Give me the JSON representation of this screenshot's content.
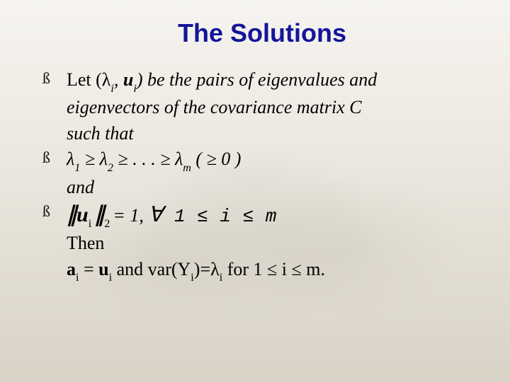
{
  "title": "The Solutions",
  "colors": {
    "title": "#14159a",
    "text": "#000000",
    "background_top": "#f6f4f0",
    "background_bottom": "#d9d3c6"
  },
  "typography": {
    "title_fontsize": 36,
    "body_fontsize": 26,
    "title_family": "Arial",
    "body_family": "Times New Roman"
  },
  "bullets": {
    "glyph": "ß"
  },
  "lines": {
    "l1a": "Let (λ",
    "l1a_sub": "i",
    "l1b": ", ",
    "l1b_bold": "u",
    "l1b_sub": "i",
    "l1c": ") be the pairs of eigenvalues and",
    "l2": "eigenvectors of the covariance matrix  C",
    "l3": "such that",
    "l4a": "λ",
    "l4a_sub": "1",
    "l4b": " ≥ λ",
    "l4b_sub": "2",
    "l4c": " ≥ . . . ≥ λ",
    "l4c_sub": "m",
    "l4d": "   ( ≥ 0 )",
    "l5": "and",
    "l6_open": "∥",
    "l6_u": "u",
    "l6_sub1": "i ",
    "l6_close": "∥",
    "l6_sub2": "2 ",
    "l6_eq": "= 1,  ",
    "l6_forall": "∀",
    "l6_range": "  1 ≤ i ≤ m",
    "l7": "Then",
    "l8a": "a",
    "l8a_sub": "i",
    "l8b": " = ",
    "l8b_bold": "u",
    "l8b_sub": "i",
    "l8c": " and var(Y",
    "l8c_sub": "i",
    "l8d": ")=λ",
    "l8d_sub": "i",
    "l8e": "  for 1 ≤ i ≤ m."
  }
}
